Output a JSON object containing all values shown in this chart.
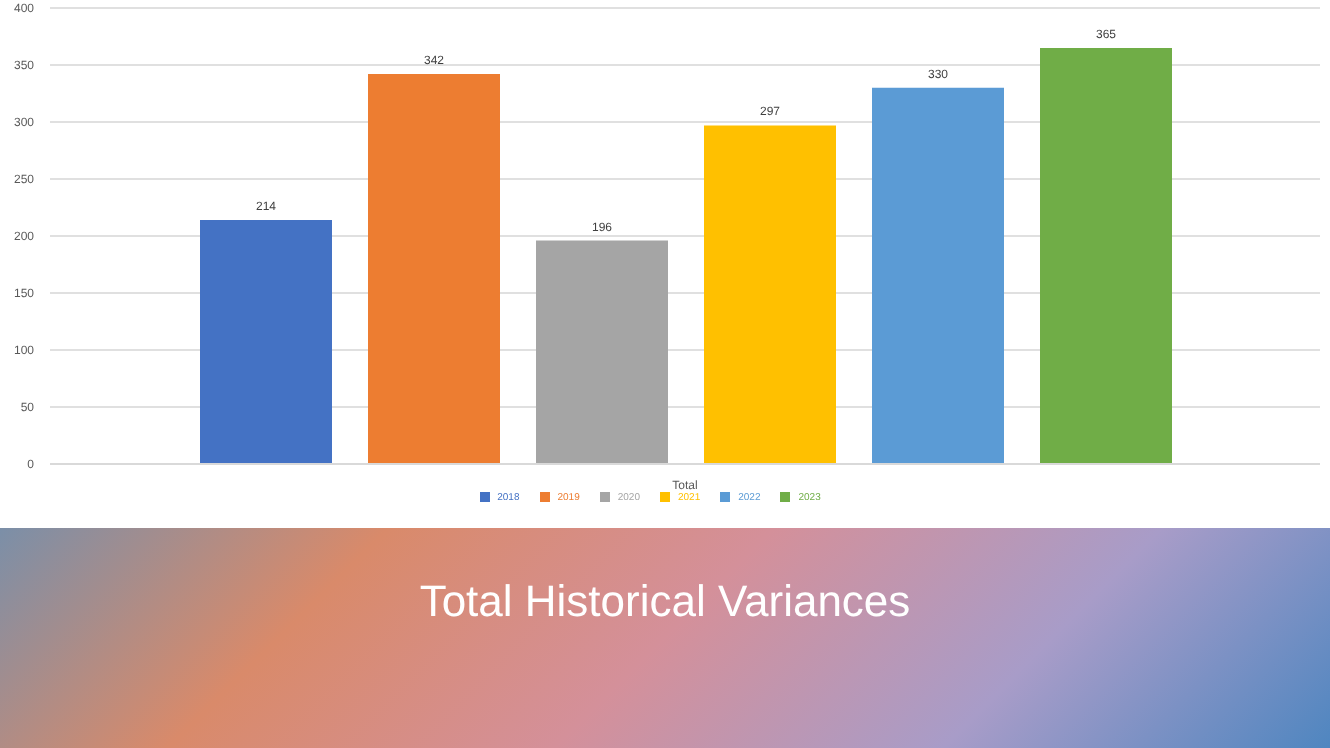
{
  "chart_data": {
    "type": "bar",
    "title": "Total Historical Variances",
    "categories": [
      "Total"
    ],
    "series": [
      {
        "name": "2018",
        "color": "#4472c4",
        "values": [
          214
        ]
      },
      {
        "name": "2019",
        "color": "#ed7d31",
        "values": [
          342
        ]
      },
      {
        "name": "2020",
        "color": "#a5a5a5",
        "values": [
          196
        ]
      },
      {
        "name": "2021",
        "color": "#ffc000",
        "values": [
          297
        ]
      },
      {
        "name": "2022",
        "color": "#5b9bd5",
        "values": [
          330
        ]
      },
      {
        "name": "2023",
        "color": "#70ad47",
        "values": [
          365
        ]
      }
    ],
    "ylim": [
      0,
      400
    ],
    "yticks": [
      0,
      50,
      100,
      150,
      200,
      250,
      300,
      350,
      400
    ],
    "grid": "y",
    "legend": "bottom",
    "data_labels": true
  }
}
